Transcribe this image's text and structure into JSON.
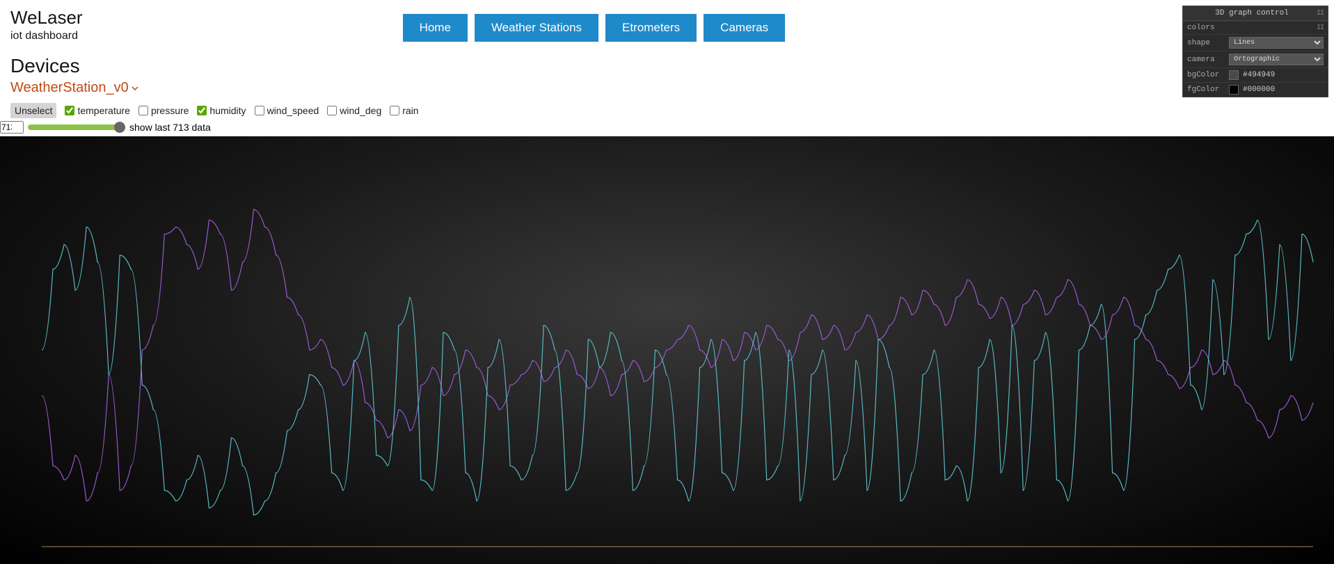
{
  "brand": {
    "title": "WeLaser",
    "subtitle": "iot dashboard"
  },
  "nav": {
    "items": [
      "Home",
      "Weather Stations",
      "Etrometers",
      "Cameras"
    ]
  },
  "section": {
    "title": "Devices",
    "device": "WeatherStation_v0"
  },
  "controls": {
    "unselect": "Unselect",
    "checkboxes": [
      {
        "label": "temperature",
        "checked": true
      },
      {
        "label": "pressure",
        "checked": false
      },
      {
        "label": "humidity",
        "checked": true
      },
      {
        "label": "wind_speed",
        "checked": false
      },
      {
        "label": "wind_deg",
        "checked": false
      },
      {
        "label": "rain",
        "checked": false
      }
    ],
    "data_count": 713,
    "slider_label_prefix": "show last ",
    "slider_label_suffix": " data"
  },
  "panel": {
    "title": "3D graph control",
    "rows": {
      "colors_label": "colors",
      "shape_label": "shape",
      "shape_value": "Lines",
      "camera_label": "camera",
      "camera_value": "Ortographic",
      "bg_label": "bgColor",
      "bg_value": "#494949",
      "fg_label": "fgColor",
      "fg_value": "#000000"
    }
  },
  "chart": {
    "type": "line",
    "background": "radial-gradient dark",
    "line_width": 1.2,
    "axis_color": "#b08050",
    "series": [
      {
        "name": "temperature",
        "color": "#9b59d0",
        "points_y": [
          0.42,
          0.22,
          0.18,
          0.25,
          0.12,
          0.2,
          0.48,
          0.15,
          0.22,
          0.55,
          0.62,
          0.88,
          0.9,
          0.85,
          0.78,
          0.92,
          0.88,
          0.72,
          0.8,
          0.95,
          0.9,
          0.82,
          0.7,
          0.65,
          0.55,
          0.58,
          0.5,
          0.45,
          0.52,
          0.4,
          0.35,
          0.3,
          0.38,
          0.32,
          0.45,
          0.5,
          0.42,
          0.48,
          0.55,
          0.5,
          0.42,
          0.38,
          0.45,
          0.48,
          0.52,
          0.46,
          0.5,
          0.55,
          0.48,
          0.44,
          0.5,
          0.42,
          0.48,
          0.52,
          0.46,
          0.5,
          0.55,
          0.58,
          0.62,
          0.55,
          0.5,
          0.58,
          0.52,
          0.6,
          0.55,
          0.62,
          0.58,
          0.52,
          0.6,
          0.65,
          0.58,
          0.62,
          0.55,
          0.6,
          0.65,
          0.58,
          0.62,
          0.7,
          0.65,
          0.72,
          0.68,
          0.62,
          0.7,
          0.75,
          0.68,
          0.64,
          0.7,
          0.62,
          0.68,
          0.72,
          0.65,
          0.7,
          0.75,
          0.68,
          0.62,
          0.58,
          0.65,
          0.7,
          0.62,
          0.58,
          0.52,
          0.48,
          0.44,
          0.5,
          0.55,
          0.48,
          0.52,
          0.45,
          0.4,
          0.35,
          0.3,
          0.38,
          0.42,
          0.35,
          0.4
        ]
      },
      {
        "name": "humidity",
        "color": "#5bb8c4",
        "points_y": [
          0.55,
          0.78,
          0.85,
          0.72,
          0.9,
          0.8,
          0.48,
          0.82,
          0.78,
          0.45,
          0.38,
          0.15,
          0.12,
          0.18,
          0.25,
          0.1,
          0.15,
          0.3,
          0.22,
          0.08,
          0.12,
          0.2,
          0.32,
          0.38,
          0.48,
          0.45,
          0.2,
          0.15,
          0.52,
          0.6,
          0.25,
          0.22,
          0.62,
          0.7,
          0.18,
          0.15,
          0.6,
          0.55,
          0.2,
          0.12,
          0.5,
          0.58,
          0.22,
          0.18,
          0.25,
          0.62,
          0.55,
          0.15,
          0.2,
          0.58,
          0.5,
          0.6,
          0.52,
          0.15,
          0.22,
          0.55,
          0.48,
          0.18,
          0.12,
          0.5,
          0.58,
          0.2,
          0.15,
          0.52,
          0.6,
          0.18,
          0.22,
          0.55,
          0.12,
          0.48,
          0.55,
          0.18,
          0.25,
          0.52,
          0.15,
          0.58,
          0.5,
          0.12,
          0.2,
          0.48,
          0.55,
          0.18,
          0.22,
          0.12,
          0.5,
          0.58,
          0.2,
          0.62,
          0.15,
          0.52,
          0.6,
          0.18,
          0.12,
          0.55,
          0.62,
          0.68,
          0.2,
          0.15,
          0.58,
          0.65,
          0.72,
          0.78,
          0.82,
          0.45,
          0.38,
          0.75,
          0.48,
          0.82,
          0.88,
          0.92,
          0.58,
          0.85,
          0.52,
          0.88,
          0.8
        ]
      }
    ]
  }
}
